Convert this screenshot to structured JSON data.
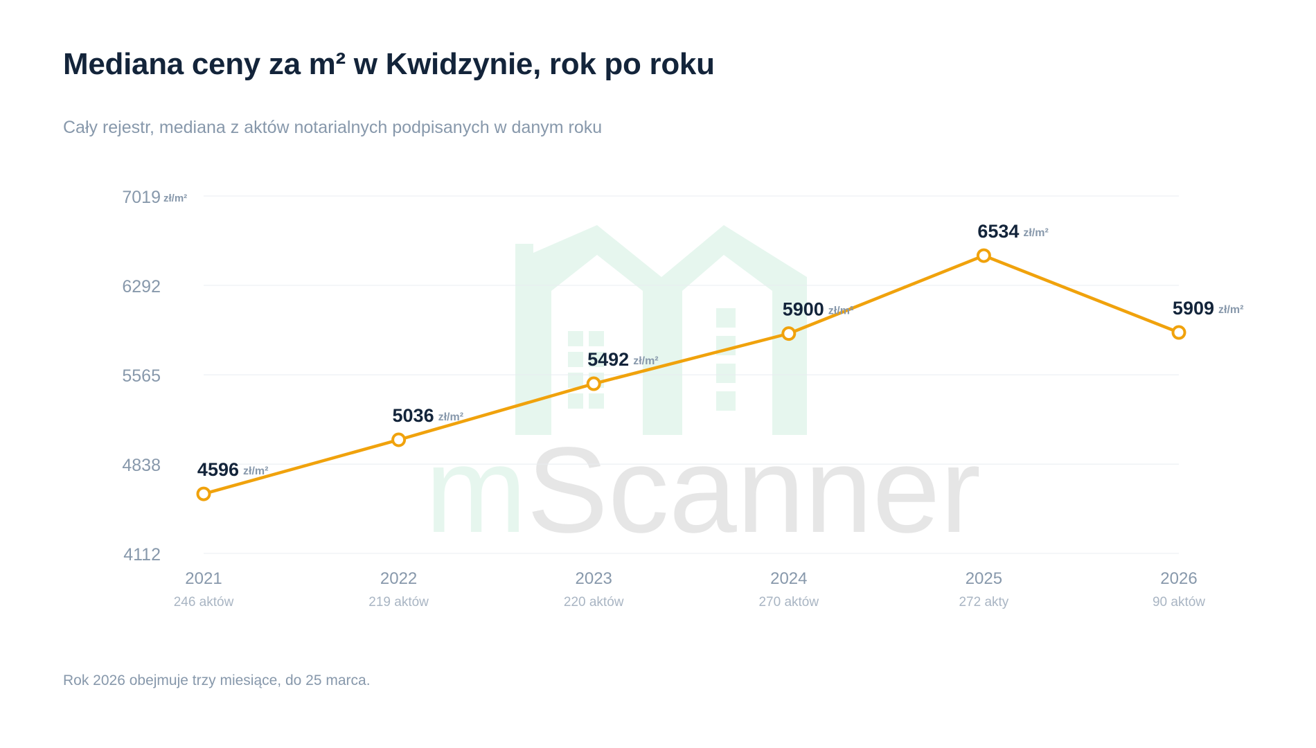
{
  "title": "Mediana ceny za m² w Kwidzynie, rok po roku",
  "subtitle": "Cały rejestr, mediana z aktów notarialnych podpisanych w danym roku",
  "footnote": "Rok 2026 obejmuje trzy miesiące, do 25 marca.",
  "watermark": {
    "text_accent": "m",
    "text_main": "Scanner",
    "icon": "house-logo-icon"
  },
  "colors": {
    "line": "#f0a20c",
    "marker_fill": "#ffffff",
    "title": "#13243a",
    "muted": "#8798ab",
    "grid": "#e8ecf0",
    "watermark_green": "#e6f6ee",
    "watermark_gray": "#e6e6e6"
  },
  "chart_data": {
    "type": "line",
    "categories": [
      "2021",
      "2022",
      "2023",
      "2024",
      "2025",
      "2026"
    ],
    "category_sublabels": [
      "246 aktów",
      "219 aktów",
      "220 aktów",
      "270 aktów",
      "272 akty",
      "90 aktów"
    ],
    "series": [
      {
        "values": [
          4596,
          5036,
          5492,
          5900,
          6534,
          5909
        ]
      }
    ],
    "value_unit": "zł/m²",
    "ylim": [
      4112,
      7019
    ],
    "yticks": [
      {
        "value": 7019,
        "label": "7019",
        "unit": "zł/m²"
      },
      {
        "value": 6292,
        "label": "6292",
        "unit": ""
      },
      {
        "value": 5565,
        "label": "5565",
        "unit": ""
      },
      {
        "value": 4838,
        "label": "4838",
        "unit": ""
      },
      {
        "value": 4112,
        "label": "4112",
        "unit": ""
      }
    ],
    "grid": true,
    "legend": "none",
    "xlabel": "",
    "ylabel": ""
  }
}
